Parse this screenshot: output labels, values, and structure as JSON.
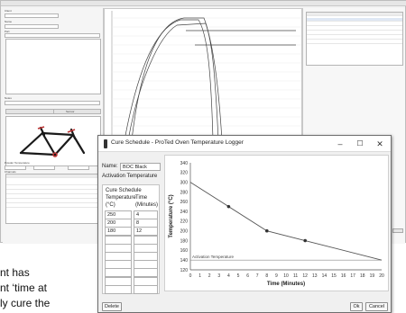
{
  "dialog": {
    "title": "Cure Schedule - ProTed Oven Temperature Logger",
    "name_label": "Name:",
    "name_value": "BOC Black",
    "activation_label": "Activation Temperature",
    "lookup_button": "Lkp",
    "schedule_header": "Cure Schedule",
    "col_temp": "Temperature",
    "col_temp_unit": "(°C)",
    "col_time": "Time",
    "col_time_unit": "(Minutes)",
    "schedule_rows": [
      {
        "temp": "250",
        "time": "4"
      },
      {
        "temp": "200",
        "time": "8"
      },
      {
        "temp": "180",
        "time": "12"
      },
      {
        "temp": "",
        "time": ""
      },
      {
        "temp": "",
        "time": ""
      },
      {
        "temp": "",
        "time": ""
      },
      {
        "temp": "",
        "time": ""
      },
      {
        "temp": "",
        "time": ""
      },
      {
        "temp": "",
        "time": ""
      },
      {
        "temp": "",
        "time": ""
      }
    ],
    "delete_button": "Delete",
    "ok_button": "Ok",
    "cancel_button": "Cancel",
    "window_buttons": {
      "minimize": "–",
      "maximize": "☐",
      "close": "✕"
    }
  },
  "chart_data": {
    "type": "line",
    "x": [
      0,
      4,
      8,
      12,
      20
    ],
    "y": [
      300,
      250,
      200,
      180,
      140
    ],
    "markers": [
      {
        "x": 4,
        "y": 250
      },
      {
        "x": 8,
        "y": 200
      },
      {
        "x": 12,
        "y": 180
      }
    ],
    "activation_line": {
      "y": 140,
      "label": "Activation Temperature"
    },
    "xlabel": "Time (Minutes)",
    "ylabel": "Temperature (°C)",
    "xlim": [
      0,
      20
    ],
    "ylim": [
      120,
      340
    ],
    "xticks": [
      0,
      1,
      2,
      3,
      4,
      5,
      6,
      7,
      8,
      9,
      10,
      11,
      12,
      13,
      14,
      15,
      16,
      17,
      18,
      19,
      20
    ],
    "yticks": [
      120,
      140,
      160,
      180,
      200,
      220,
      240,
      260,
      280,
      300,
      320,
      340
    ],
    "colors": {
      "line": "#555555",
      "marker": "#333333",
      "activation": "#888888"
    }
  },
  "article": {
    "line1": "nt has",
    "line2": "nt ‘time at",
    "line3": "ly cure the"
  },
  "background_app": {
    "left_labels": [
      "Client",
      "Name",
      "Part",
      "Notes",
      "Powder Temperature",
      "Channels"
    ],
    "tab_label": "Sensor",
    "right_header": [
      "Date",
      "Temp",
      "Cured",
      "Time"
    ]
  }
}
